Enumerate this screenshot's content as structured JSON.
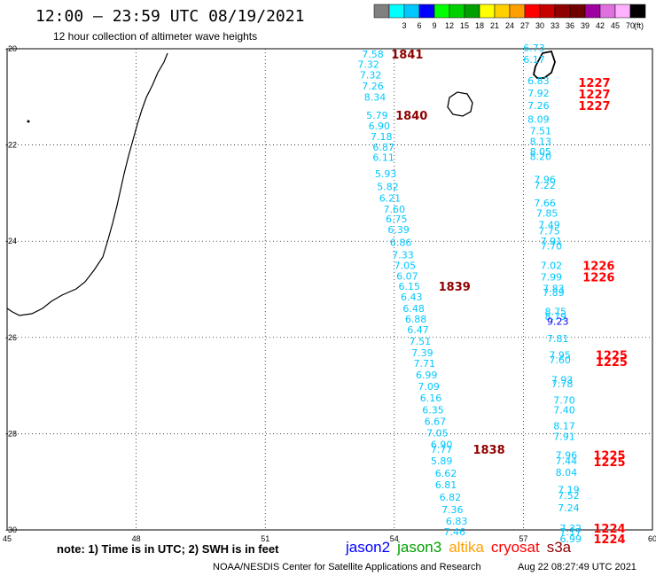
{
  "header": {
    "title": "12:00 – 23:59 UTC 08/19/2021",
    "subtitle": "12 hour collection of altimeter wave heights"
  },
  "colorbar": {
    "unit": "(ft)",
    "swatches": [
      {
        "color": "#808080",
        "label": ""
      },
      {
        "color": "#00ffff",
        "label": "3"
      },
      {
        "color": "#00c8ff",
        "label": "6"
      },
      {
        "color": "#0000ff",
        "label": "9"
      },
      {
        "color": "#00ff00",
        "label": "12"
      },
      {
        "color": "#00d000",
        "label": "15"
      },
      {
        "color": "#00a000",
        "label": "18"
      },
      {
        "color": "#ffff00",
        "label": "21"
      },
      {
        "color": "#ffd000",
        "label": "24"
      },
      {
        "color": "#ffa000",
        "label": "27"
      },
      {
        "color": "#ff0000",
        "label": "30"
      },
      {
        "color": "#c80000",
        "label": "33"
      },
      {
        "color": "#900000",
        "label": "36"
      },
      {
        "color": "#700000",
        "label": "39"
      },
      {
        "color": "#a000a0",
        "label": "42"
      },
      {
        "color": "#e070e0",
        "label": "45"
      },
      {
        "color": "#ffb0ff",
        "label": "70"
      },
      {
        "color": "#000000",
        "label": ""
      }
    ]
  },
  "axes": {
    "x_ticks": [
      "45",
      "48",
      "51",
      "54",
      "57",
      "60"
    ],
    "y_ticks": [
      "-20",
      "-22",
      "-24",
      "-26",
      "-28",
      "-30"
    ]
  },
  "footer": {
    "note": "note: 1) Time is in UTC; 2) SWH is in feet",
    "satellites": [
      {
        "name": "jason2",
        "color": "#0000ff"
      },
      {
        "name": "jason3",
        "color": "#00a000"
      },
      {
        "name": "altika",
        "color": "#ffa000"
      },
      {
        "name": "cryosat",
        "color": "#ff0000"
      },
      {
        "name": "s3a",
        "color": "#900000"
      }
    ],
    "credit": "NOAA/NESDIS Center for Satellite Applications and Research",
    "timestamp": "Aug 22 08:27:49 UTC 2021"
  },
  "chart_data": {
    "type": "map",
    "lon_range": [
      45,
      60
    ],
    "lat_range": [
      -30,
      -20
    ],
    "tracks": [
      {
        "color": "#00c8ff",
        "points": [
          {
            "lon": 53.5,
            "lat": -20.11,
            "v": "7.58"
          },
          {
            "lon": 53.4,
            "lat": -20.32,
            "v": "7.32"
          },
          {
            "lon": 53.45,
            "lat": -20.54,
            "v": "7.32"
          },
          {
            "lon": 53.5,
            "lat": -20.77,
            "v": "7.26"
          },
          {
            "lon": 53.55,
            "lat": -21.0,
            "v": "8.34"
          },
          {
            "lon": 53.6,
            "lat": -21.38,
            "v": "5.79"
          },
          {
            "lon": 53.65,
            "lat": -21.6,
            "v": "6.90"
          },
          {
            "lon": 53.7,
            "lat": -21.82,
            "v": "7.18"
          },
          {
            "lon": 53.75,
            "lat": -22.04,
            "v": "6.87"
          },
          {
            "lon": 53.75,
            "lat": -22.26,
            "v": "6.11"
          },
          {
            "lon": 53.8,
            "lat": -22.6,
            "v": "5.93"
          },
          {
            "lon": 53.85,
            "lat": -22.86,
            "v": "5.82"
          },
          {
            "lon": 53.9,
            "lat": -23.1,
            "v": "6.21"
          },
          {
            "lon": 54.0,
            "lat": -23.33,
            "v": "7.60"
          },
          {
            "lon": 54.05,
            "lat": -23.54,
            "v": "6.75"
          },
          {
            "lon": 54.1,
            "lat": -23.76,
            "v": "6.39"
          },
          {
            "lon": 54.15,
            "lat": -24.02,
            "v": "6.86"
          },
          {
            "lon": 54.2,
            "lat": -24.28,
            "v": "7.33"
          },
          {
            "lon": 54.25,
            "lat": -24.5,
            "v": "7.05"
          },
          {
            "lon": 54.3,
            "lat": -24.72,
            "v": "6.07"
          },
          {
            "lon": 54.35,
            "lat": -24.94,
            "v": "6.15"
          },
          {
            "lon": 54.4,
            "lat": -25.16,
            "v": "6.43"
          },
          {
            "lon": 54.45,
            "lat": -25.4,
            "v": "6.48"
          },
          {
            "lon": 54.5,
            "lat": -25.62,
            "v": "6.88"
          },
          {
            "lon": 54.55,
            "lat": -25.84,
            "v": "6.47"
          },
          {
            "lon": 54.6,
            "lat": -26.08,
            "v": "7.51"
          },
          {
            "lon": 54.65,
            "lat": -26.32,
            "v": "7.39"
          },
          {
            "lon": 54.7,
            "lat": -26.54,
            "v": "7.71"
          },
          {
            "lon": 54.75,
            "lat": -26.78,
            "v": "6.99"
          },
          {
            "lon": 54.8,
            "lat": -27.02,
            "v": "7.09"
          },
          {
            "lon": 54.85,
            "lat": -27.26,
            "v": "6.16"
          },
          {
            "lon": 54.9,
            "lat": -27.5,
            "v": "6.35"
          },
          {
            "lon": 54.95,
            "lat": -27.74,
            "v": "6.67"
          },
          {
            "lon": 55.0,
            "lat": -27.98,
            "v": "7.05"
          },
          {
            "lon": 55.1,
            "lat": -28.22,
            "v": "6.90"
          },
          {
            "lon": 55.1,
            "lat": -28.32,
            "v": "7.77"
          },
          {
            "lon": 55.1,
            "lat": -28.56,
            "v": "5.89"
          },
          {
            "lon": 55.2,
            "lat": -28.82,
            "v": "6.62"
          },
          {
            "lon": 55.2,
            "lat": -29.06,
            "v": "6.81"
          },
          {
            "lon": 55.3,
            "lat": -29.32,
            "v": "6.82"
          },
          {
            "lon": 55.35,
            "lat": -29.58,
            "v": "7.36"
          },
          {
            "lon": 55.45,
            "lat": -29.82,
            "v": "6.83"
          },
          {
            "lon": 55.4,
            "lat": -30.04,
            "v": "7.46"
          }
        ]
      },
      {
        "color": "#00c8ff",
        "points": [
          {
            "lon": 57.25,
            "lat": -19.98,
            "v": "6.73"
          },
          {
            "lon": 57.25,
            "lat": -20.22,
            "v": "6.17"
          },
          {
            "lon": 57.35,
            "lat": -20.66,
            "v": "6.83"
          },
          {
            "lon": 57.35,
            "lat": -20.92,
            "v": "7.92"
          },
          {
            "lon": 57.35,
            "lat": -21.18,
            "v": "7.26"
          },
          {
            "lon": 57.35,
            "lat": -21.46,
            "v": "8.09"
          },
          {
            "lon": 57.4,
            "lat": -21.7,
            "v": "7.51"
          },
          {
            "lon": 57.4,
            "lat": -21.92,
            "v": "8.13"
          },
          {
            "lon": 57.4,
            "lat": -22.14,
            "v": "8.05"
          },
          {
            "lon": 57.4,
            "lat": -22.24,
            "v": "8.20"
          },
          {
            "lon": 57.5,
            "lat": -22.72,
            "v": "7.96"
          },
          {
            "lon": 57.5,
            "lat": -22.84,
            "v": "7.22"
          },
          {
            "lon": 57.5,
            "lat": -23.2,
            "v": "7.66"
          },
          {
            "lon": 57.55,
            "lat": -23.42,
            "v": "7.85"
          },
          {
            "lon": 57.6,
            "lat": -23.66,
            "v": "7.49"
          },
          {
            "lon": 57.6,
            "lat": -23.78,
            "v": "7.75"
          },
          {
            "lon": 57.65,
            "lat": -24.0,
            "v": "7.91"
          },
          {
            "lon": 57.65,
            "lat": -24.1,
            "v": "7.70"
          },
          {
            "lon": 57.65,
            "lat": -24.5,
            "v": "7.02"
          },
          {
            "lon": 57.65,
            "lat": -24.74,
            "v": "7.99"
          },
          {
            "lon": 57.7,
            "lat": -24.98,
            "v": "7.83"
          },
          {
            "lon": 57.7,
            "lat": -25.06,
            "v": "7.89"
          },
          {
            "lon": 57.75,
            "lat": -25.46,
            "v": "8.75"
          },
          {
            "lon": 57.75,
            "lat": -25.56,
            "v": "8.79"
          },
          {
            "lon": 57.8,
            "lat": -26.02,
            "v": "7.81"
          },
          {
            "lon": 57.85,
            "lat": -26.36,
            "v": "7.95"
          },
          {
            "lon": 57.85,
            "lat": -26.46,
            "v": "7.60"
          },
          {
            "lon": 57.9,
            "lat": -26.88,
            "v": "7.93"
          },
          {
            "lon": 57.9,
            "lat": -26.96,
            "v": "7.78"
          },
          {
            "lon": 57.95,
            "lat": -27.3,
            "v": "7.70"
          },
          {
            "lon": 57.95,
            "lat": -27.5,
            "v": "7.40"
          },
          {
            "lon": 57.95,
            "lat": -27.84,
            "v": "8.17"
          },
          {
            "lon": 57.95,
            "lat": -28.06,
            "v": "7.91"
          },
          {
            "lon": 58.0,
            "lat": -28.44,
            "v": "7.96"
          },
          {
            "lon": 58.0,
            "lat": -28.56,
            "v": "7.44"
          },
          {
            "lon": 58.0,
            "lat": -28.8,
            "v": "8.04"
          },
          {
            "lon": 58.05,
            "lat": -29.16,
            "v": "7.19"
          },
          {
            "lon": 58.05,
            "lat": -29.28,
            "v": "7.52"
          },
          {
            "lon": 58.05,
            "lat": -29.54,
            "v": "7.24"
          },
          {
            "lon": 58.1,
            "lat": -29.96,
            "v": "7.32"
          },
          {
            "lon": 58.1,
            "lat": -30.04,
            "v": "7.17"
          },
          {
            "lon": 58.1,
            "lat": -30.18,
            "v": "6.99"
          }
        ]
      },
      {
        "color": "#0000ff",
        "points": [
          {
            "lon": 57.8,
            "lat": -25.66,
            "v": "9.23"
          }
        ]
      }
    ],
    "pass_labels": [
      {
        "lon": 54.3,
        "lat": -20.11,
        "text": "1841",
        "color": "#900000"
      },
      {
        "lon": 54.4,
        "lat": -21.38,
        "text": "1840",
        "color": "#900000"
      },
      {
        "lon": 55.4,
        "lat": -24.94,
        "text": "1839",
        "color": "#900000"
      },
      {
        "lon": 56.2,
        "lat": -28.32,
        "text": "1838",
        "color": "#900000"
      },
      {
        "lon": 58.65,
        "lat": -20.7,
        "text": "1227",
        "color": "#ff0000"
      },
      {
        "lon": 58.65,
        "lat": -20.94,
        "text": "1227",
        "color": "#ff0000"
      },
      {
        "lon": 58.65,
        "lat": -21.18,
        "text": "1227",
        "color": "#ff0000"
      },
      {
        "lon": 58.75,
        "lat": -24.5,
        "text": "1226",
        "color": "#ff0000"
      },
      {
        "lon": 58.75,
        "lat": -24.74,
        "text": "1226",
        "color": "#ff0000"
      },
      {
        "lon": 59.05,
        "lat": -26.36,
        "text": "1225",
        "color": "#ff0000"
      },
      {
        "lon": 59.05,
        "lat": -26.5,
        "text": "1225",
        "color": "#ff0000"
      },
      {
        "lon": 59.0,
        "lat": -28.44,
        "text": "1225",
        "color": "#ff0000"
      },
      {
        "lon": 59.0,
        "lat": -28.58,
        "text": "1225",
        "color": "#ff0000"
      },
      {
        "lon": 59.0,
        "lat": -29.96,
        "text": "1224",
        "color": "#ff0000"
      },
      {
        "lon": 59.0,
        "lat": -30.18,
        "text": "1224",
        "color": "#ff0000"
      }
    ]
  }
}
